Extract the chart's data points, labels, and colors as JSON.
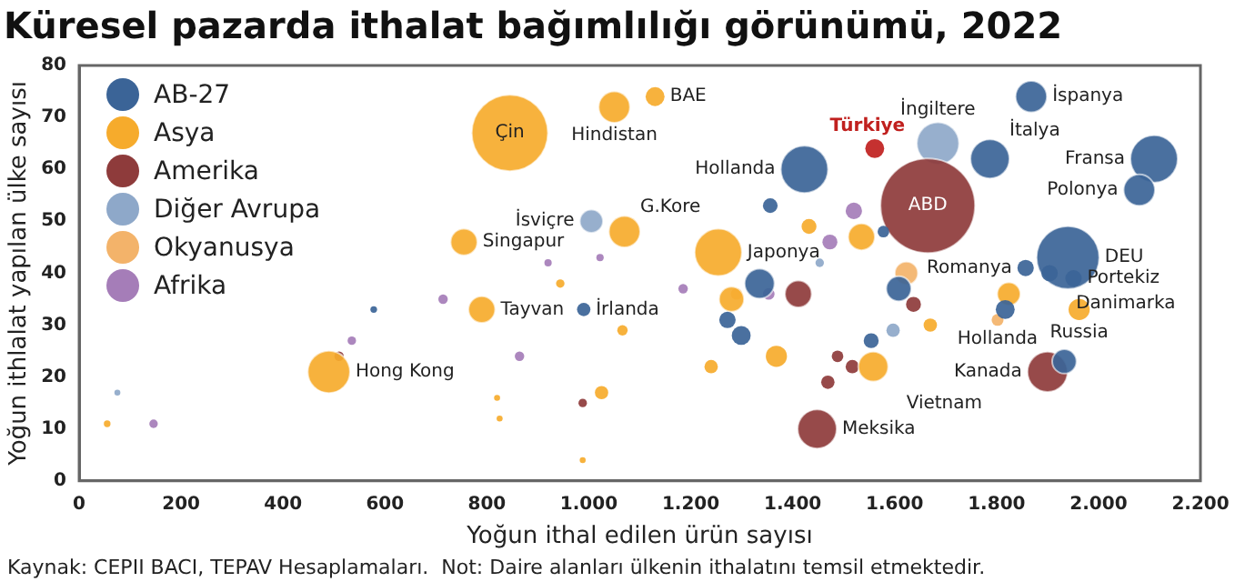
{
  "chart_data": {
    "type": "bubble",
    "title": "Küresel pazarda ithalat bağımlılığı görünümü, 2022",
    "xlabel": "Yoğun ithal edilen ürün sayısı",
    "ylabel": "Yoğun ithlalat yapılan ülke sayısı",
    "xlim": [
      0,
      2200
    ],
    "xticks": [
      0,
      200,
      400,
      600,
      800,
      {
        "value": 1000,
        "label": "1.000"
      },
      {
        "value": 1200,
        "label": "1.200"
      },
      {
        "value": 1400,
        "label": "1.400"
      },
      {
        "value": 1600,
        "label": "1.600"
      },
      {
        "value": 1800,
        "label": "1.800"
      },
      {
        "value": 2000,
        "label": "2.000"
      },
      {
        "value": 2200,
        "label": "2.200"
      }
    ],
    "ylim": [
      0,
      80
    ],
    "yticks": [
      0,
      10,
      20,
      30,
      40,
      50,
      60,
      70,
      80
    ],
    "grid": false,
    "legend": "top left",
    "series": [
      {
        "name": "AB-27",
        "color": "#3b6497",
        "x": [
          1423,
          1868,
          1787,
          2109,
          2080,
          1940,
          1904,
          1951,
          1857,
          990,
          1933,
          1356,
          1608,
          1335,
          1299,
          1272,
          1817,
          1554,
          578,
          1578
        ],
        "values": [
          60,
          74,
          62,
          62,
          56,
          43,
          40,
          39,
          41,
          33,
          23,
          53,
          37,
          38,
          28,
          31,
          33,
          27,
          33,
          48
        ],
        "sizes": [
          0.25,
          0.11,
          0.17,
          0.25,
          0.11,
          0.44,
          0.03,
          0.03,
          0.03,
          0.02,
          0.066,
          0.024,
          0.07,
          0.1,
          0.04,
          0.03,
          0.04,
          0.025,
          0.005,
          0.015
        ]
      },
      {
        "name": "Asya",
        "color": "#f6ab2c",
        "x": [
          845,
          1050,
          1130,
          1070,
          755,
          790,
          490,
          1254,
          1558,
          1962,
          1535,
          1280,
          1368,
          1824,
          1240,
          1670,
          1432,
          1025,
          1066,
          944,
          55,
          988,
          820,
          825
        ],
        "values": [
          67,
          72,
          74,
          48,
          46,
          33,
          21,
          44,
          22,
          33,
          47,
          35,
          24,
          36,
          22,
          30,
          49,
          17,
          29,
          38,
          11,
          4,
          16,
          12
        ],
        "sizes": [
          0.65,
          0.11,
          0.04,
          0.11,
          0.08,
          0.08,
          0.2,
          0.25,
          0.1,
          0.05,
          0.08,
          0.07,
          0.05,
          0.06,
          0.02,
          0.02,
          0.025,
          0.02,
          0.012,
          0.008,
          0.005,
          0.004,
          0.004,
          0.004
        ]
      },
      {
        "name": "Amerika",
        "color": "#8e3b3b",
        "x": [
          1665,
          1900,
          1448,
          1411,
          1637,
          1517,
          1469,
          510,
          988,
          1488
        ],
        "values": [
          53,
          21,
          10,
          36,
          34,
          22,
          19,
          24,
          15,
          24
        ],
        "sizes": [
          1,
          0.18,
          0.17,
          0.08,
          0.025,
          0.02,
          0.02,
          0.01,
          0.008,
          0.015
        ]
      },
      {
        "name": "Diğer Avrupa",
        "color": "#8ea8c9",
        "x": [
          1005,
          1685,
          1597,
          75,
          1453
        ],
        "values": [
          50,
          65,
          29,
          17,
          42
        ],
        "sizes": [
          0.06,
          0.2,
          0.02,
          0.004,
          0.008
        ]
      },
      {
        "name": "Okyanusya",
        "color": "#f3b36a",
        "x": [
          1802,
          1623,
          1290
        ],
        "values": [
          31,
          40,
          36
        ],
        "sizes": [
          0.016,
          0.06,
          0.015
        ]
      },
      {
        "name": "Afrika",
        "color": "#a57db8",
        "x": [
          1520,
          1473,
          1185,
          714,
          535,
          864,
          146,
          1353,
          1022,
          920
        ],
        "values": [
          52,
          46,
          37,
          35,
          27,
          24,
          11,
          36,
          43,
          42
        ],
        "sizes": [
          0.03,
          0.025,
          0.01,
          0.01,
          0.008,
          0.01,
          0.008,
          0.015,
          0.006,
          0.006
        ]
      },
      {
        "name": "Türkiye",
        "color": "#c0201e",
        "x": [
          1561
        ],
        "values": [
          64
        ],
        "sizes": [
          0.04
        ]
      }
    ],
    "annotations": [
      {
        "text": "Çin",
        "x": 845,
        "y": 67
      },
      {
        "text": "Hindistan",
        "x": 1050,
        "y": 72
      },
      {
        "text": "BAE",
        "x": 1130,
        "y": 74
      },
      {
        "text": "İsviçre",
        "x": 1005,
        "y": 50
      },
      {
        "text": "G.Kore",
        "x": 1070,
        "y": 48
      },
      {
        "text": "Singapur",
        "x": 755,
        "y": 46
      },
      {
        "text": "Tayvan",
        "x": 790,
        "y": 33
      },
      {
        "text": "İrlanda",
        "x": 990,
        "y": 33
      },
      {
        "text": "Hong Kong",
        "x": 490,
        "y": 21
      },
      {
        "text": "Japonya",
        "x": 1254,
        "y": 44
      },
      {
        "text": "Hollanda",
        "x": 1423,
        "y": 60
      },
      {
        "text": "İngiltere",
        "x": 1685,
        "y": 65
      },
      {
        "text": "İspanya",
        "x": 1868,
        "y": 74
      },
      {
        "text": "Fransa",
        "x": 2109,
        "y": 62
      },
      {
        "text": "İtalya",
        "x": 1787,
        "y": 62
      },
      {
        "text": "Danimarka",
        "x": 1904,
        "y": 40
      },
      {
        "text": "Romanya",
        "x": 1857,
        "y": 41
      },
      {
        "text": "Polonya",
        "x": 2080,
        "y": 56
      },
      {
        "text": "DEU",
        "x": 1940,
        "y": 43
      },
      {
        "text": "Portekiz",
        "x": 1951,
        "y": 39
      },
      {
        "text": "Russia",
        "x": 1962,
        "y": 33
      },
      {
        "text": "Hollanda",
        "x": 1802,
        "y": 31
      },
      {
        "text": "Kanada",
        "x": 1900,
        "y": 21
      },
      {
        "text": "Vietnam",
        "x": 1558,
        "y": 22
      },
      {
        "text": "Meksika",
        "x": 1448,
        "y": 10
      },
      {
        "text": "ABD",
        "x": 1665,
        "y": 53
      },
      "Kaynak: CEPII BACI, TEPAV Hesaplamaları.  Not: Daire alanları ülkenin ithalatını temsil etmektedir."
    ]
  }
}
